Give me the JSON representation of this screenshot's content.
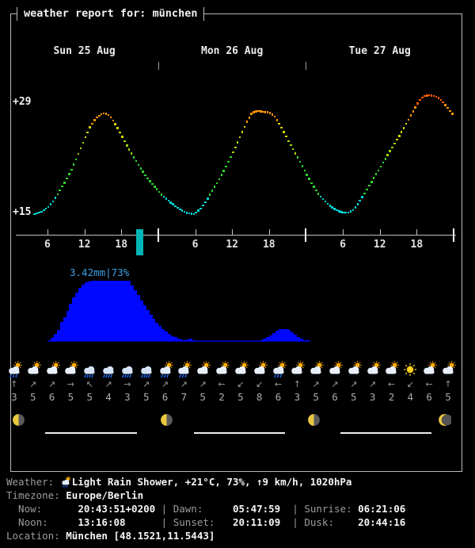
{
  "title": "weather report for: münchen",
  "days": [
    {
      "label": "Sun 25 Aug",
      "center_hour": 12
    },
    {
      "label": "Mon 26 Aug",
      "center_hour": 36
    },
    {
      "label": "Tue 27 Aug",
      "center_hour": 60
    }
  ],
  "y_axis": {
    "top_label": "+29",
    "bottom_label": "+15"
  },
  "x_axis": {
    "tick_hours": [
      6,
      12,
      18,
      30,
      36,
      42,
      54,
      60,
      66
    ],
    "tick_labels": [
      "6",
      "12",
      "18",
      "6",
      "12",
      "18",
      "6",
      "12",
      "18"
    ],
    "day_boundary_hours": [
      24,
      48,
      72
    ],
    "day_separator_hours": [
      24,
      48
    ],
    "now_hour": 20.73,
    "now_marker_color": "#00b5b5"
  },
  "chart_data": [
    {
      "type": "scatter",
      "name": "temperature",
      "unit": "°C",
      "ylim": [
        15,
        29
      ],
      "y_tick_labels": [
        "+29",
        "+15"
      ],
      "grid": false,
      "color_scale": [
        {
          "max": 17,
          "color": "#00d7d7"
        },
        {
          "max": 22,
          "color": "#30d530"
        },
        {
          "max": 24,
          "color": "#9fd700"
        },
        {
          "max": 26.2,
          "color": "#d6d600"
        },
        {
          "max": 28.6,
          "color": "#ff9400"
        },
        {
          "max": 99,
          "color": "#ff5a00"
        }
      ],
      "points": [
        [
          3.9,
          14.7
        ],
        [
          5,
          15.0
        ],
        [
          6,
          15.5
        ],
        [
          7,
          16.4
        ],
        [
          8,
          17.7
        ],
        [
          9,
          19.0
        ],
        [
          10,
          20.5
        ],
        [
          11,
          22.3
        ],
        [
          12,
          24.2
        ],
        [
          13,
          25.9
        ],
        [
          14,
          27.0
        ],
        [
          15,
          27.5
        ],
        [
          15.8,
          27.4
        ],
        [
          16.5,
          26.8
        ],
        [
          17.5,
          25.5
        ],
        [
          18.5,
          24.0
        ],
        [
          19.5,
          22.6
        ],
        [
          20.5,
          21.3
        ],
        [
          21.5,
          20.1
        ],
        [
          22.5,
          19.0
        ],
        [
          23.5,
          18.1
        ],
        [
          24.5,
          17.2
        ],
        [
          25.5,
          16.5
        ],
        [
          26.5,
          15.9
        ],
        [
          27.5,
          15.3
        ],
        [
          28.5,
          14.9
        ],
        [
          29.8,
          14.7
        ],
        [
          30.8,
          15.3
        ],
        [
          31.8,
          16.4
        ],
        [
          32.8,
          17.7
        ],
        [
          33.8,
          19.0
        ],
        [
          34.8,
          20.4
        ],
        [
          35.5,
          21.5
        ],
        [
          36.3,
          22.8
        ],
        [
          37,
          24.0
        ],
        [
          37.8,
          25.4
        ],
        [
          38.5,
          26.6
        ],
        [
          39.2,
          27.5
        ],
        [
          40,
          27.8
        ],
        [
          41,
          27.7
        ],
        [
          42,
          27.6
        ],
        [
          42.8,
          27.2
        ],
        [
          43.5,
          26.4
        ],
        [
          44.3,
          25.3
        ],
        [
          45,
          24.2
        ],
        [
          46,
          22.8
        ],
        [
          47,
          21.4
        ],
        [
          48,
          19.9
        ],
        [
          49,
          18.5
        ],
        [
          50,
          17.3
        ],
        [
          51,
          16.4
        ],
        [
          52,
          15.7
        ],
        [
          53,
          15.2
        ],
        [
          54,
          14.9
        ],
        [
          55,
          14.9
        ],
        [
          55.8,
          15.3
        ],
        [
          56.5,
          16.1
        ],
        [
          57.5,
          17.3
        ],
        [
          58.5,
          18.6
        ],
        [
          59.5,
          19.9
        ],
        [
          60.5,
          21.2
        ],
        [
          61.5,
          22.5
        ],
        [
          62.5,
          23.8
        ],
        [
          63.5,
          25.1
        ],
        [
          64.3,
          26.2
        ],
        [
          65,
          27.2
        ],
        [
          65.8,
          28.3
        ],
        [
          66.5,
          29.2
        ],
        [
          67.2,
          29.7
        ],
        [
          68,
          29.8
        ],
        [
          69,
          29.7
        ],
        [
          69.8,
          29.3
        ],
        [
          70.5,
          28.7
        ],
        [
          71.2,
          28.0
        ],
        [
          72,
          27.2
        ]
      ]
    },
    {
      "type": "bar",
      "name": "precipitation",
      "label": "3.42mm|73%",
      "max_mm": 3.42,
      "max_probability_pct": 73,
      "bar_color": "#0008ff",
      "baseline_color": "#0000a6",
      "label_color": "#3da0e8",
      "points": [
        [
          6.3,
          0
        ],
        [
          6.7,
          0.13
        ],
        [
          7.2,
          0.36
        ],
        [
          7.8,
          0.63
        ],
        [
          8.3,
          1.08
        ],
        [
          9,
          1.44
        ],
        [
          9.7,
          2.02
        ],
        [
          10.3,
          2.47
        ],
        [
          11,
          2.88
        ],
        [
          11.7,
          3.19
        ],
        [
          12.3,
          3.33
        ],
        [
          13.2,
          3.42
        ],
        [
          19.3,
          3.42
        ],
        [
          19.8,
          3.15
        ],
        [
          20.4,
          2.83
        ],
        [
          21.1,
          2.43
        ],
        [
          21.9,
          1.98
        ],
        [
          22.7,
          1.53
        ],
        [
          23.5,
          1.17
        ],
        [
          24.3,
          0.86
        ],
        [
          25.1,
          0.58
        ],
        [
          25.9,
          0.36
        ],
        [
          26.7,
          0.22
        ],
        [
          27.5,
          0.13
        ],
        [
          28.2,
          0.05
        ],
        [
          28.8,
          0.09
        ],
        [
          29.4,
          0.13
        ],
        [
          29.9,
          0.05
        ],
        [
          30.3,
          0
        ],
        [
          40.3,
          0
        ],
        [
          40.9,
          0.05
        ],
        [
          41.4,
          0.13
        ],
        [
          42,
          0.27
        ],
        [
          42.6,
          0.4
        ],
        [
          43.2,
          0.58
        ],
        [
          43.9,
          0.67
        ],
        [
          44.7,
          0.67
        ],
        [
          45.4,
          0.63
        ],
        [
          46,
          0.45
        ],
        [
          46.6,
          0.27
        ],
        [
          47.2,
          0.13
        ],
        [
          47.8,
          0.05
        ],
        [
          48.9,
          0
        ]
      ]
    }
  ],
  "forecast": {
    "columns": [
      {
        "icon": "sun-rain",
        "wind_dir": "↑",
        "wind_speed": "3"
      },
      {
        "icon": "sun-cloud",
        "wind_dir": "↗",
        "wind_speed": "5"
      },
      {
        "icon": "sun-cloud",
        "wind_dir": "↗",
        "wind_speed": "6"
      },
      {
        "icon": "sun-cloud",
        "wind_dir": "→",
        "wind_speed": "5"
      },
      {
        "icon": "rain",
        "wind_dir": "↖",
        "wind_speed": "5"
      },
      {
        "icon": "rain",
        "wind_dir": "↗",
        "wind_speed": "4"
      },
      {
        "icon": "rain",
        "wind_dir": "→",
        "wind_speed": "3"
      },
      {
        "icon": "rain",
        "wind_dir": "↗",
        "wind_speed": "5"
      },
      {
        "icon": "sun-rain",
        "wind_dir": "↗",
        "wind_speed": "6"
      },
      {
        "icon": "sun-rain",
        "wind_dir": "↗",
        "wind_speed": "7"
      },
      {
        "icon": "sun-cloud",
        "wind_dir": "↗",
        "wind_speed": "5"
      },
      {
        "icon": "sun-cloud",
        "wind_dir": "←",
        "wind_speed": "2"
      },
      {
        "icon": "sun-cloud",
        "wind_dir": "↙",
        "wind_speed": "5"
      },
      {
        "icon": "sun-cloud",
        "wind_dir": "↙",
        "wind_speed": "8"
      },
      {
        "icon": "sun-rain",
        "wind_dir": "←",
        "wind_speed": "6"
      },
      {
        "icon": "sun-cloud",
        "wind_dir": "↑",
        "wind_speed": "3"
      },
      {
        "icon": "sun-cloud",
        "wind_dir": "↗",
        "wind_speed": "5"
      },
      {
        "icon": "sun-cloud",
        "wind_dir": "↗",
        "wind_speed": "6"
      },
      {
        "icon": "sun-cloud",
        "wind_dir": "↗",
        "wind_speed": "5"
      },
      {
        "icon": "sun-cloud",
        "wind_dir": "↗",
        "wind_speed": "3"
      },
      {
        "icon": "sun-cloud",
        "wind_dir": "←",
        "wind_speed": "2"
      },
      {
        "icon": "sun",
        "wind_dir": "↙",
        "wind_speed": "4"
      },
      {
        "icon": "sun-cloud",
        "wind_dir": "←",
        "wind_speed": "6"
      },
      {
        "icon": "sun-cloud",
        "wind_dir": "↑",
        "wind_speed": "5"
      }
    ]
  },
  "astronomy": {
    "moon_phases": [
      "waning-half",
      "waning-half",
      "waning-half",
      "waning-crescent"
    ],
    "daylight_hours": [
      [
        5.6,
        20.5
      ],
      [
        29.8,
        44.6
      ],
      [
        53.6,
        68.4
      ]
    ]
  },
  "status": {
    "lines": [
      {
        "name": "weather",
        "segments": [
          {
            "text": "Weather: ",
            "role": "label"
          },
          {
            "icon": "sun-rain"
          },
          {
            "text": "Light Rain Shower, +21°C, 73%, ↑9 km/h, 1020hPa",
            "role": "value"
          }
        ]
      },
      {
        "name": "timezone",
        "segments": [
          {
            "text": "Timezone: ",
            "role": "label"
          },
          {
            "text": "Europe/Berlin",
            "role": "value"
          }
        ]
      },
      {
        "name": "times-1",
        "segments": [
          {
            "text": "  Now:      ",
            "role": "label"
          },
          {
            "text": "20:43:51+0200",
            "role": "value"
          },
          {
            "text": " | ",
            "role": "label"
          },
          {
            "text": "Dawn:     ",
            "role": "label"
          },
          {
            "text": "05:47:59",
            "role": "value"
          },
          {
            "text": "  | ",
            "role": "label"
          },
          {
            "text": "Sunrise: ",
            "role": "label"
          },
          {
            "text": "06:21:06",
            "role": "value"
          }
        ]
      },
      {
        "name": "times-2",
        "segments": [
          {
            "text": "  Noon:     ",
            "role": "label"
          },
          {
            "text": "13:16:08",
            "role": "value"
          },
          {
            "text": "      | ",
            "role": "label"
          },
          {
            "text": "Sunset:   ",
            "role": "label"
          },
          {
            "text": "20:11:09",
            "role": "value"
          },
          {
            "text": "  | ",
            "role": "label"
          },
          {
            "text": "Dusk:    ",
            "role": "label"
          },
          {
            "text": "20:44:16",
            "role": "value"
          }
        ]
      },
      {
        "name": "location",
        "segments": [
          {
            "text": "Location: ",
            "role": "label"
          },
          {
            "text": "München [48.1521,11.5443]",
            "role": "value"
          }
        ]
      }
    ]
  }
}
